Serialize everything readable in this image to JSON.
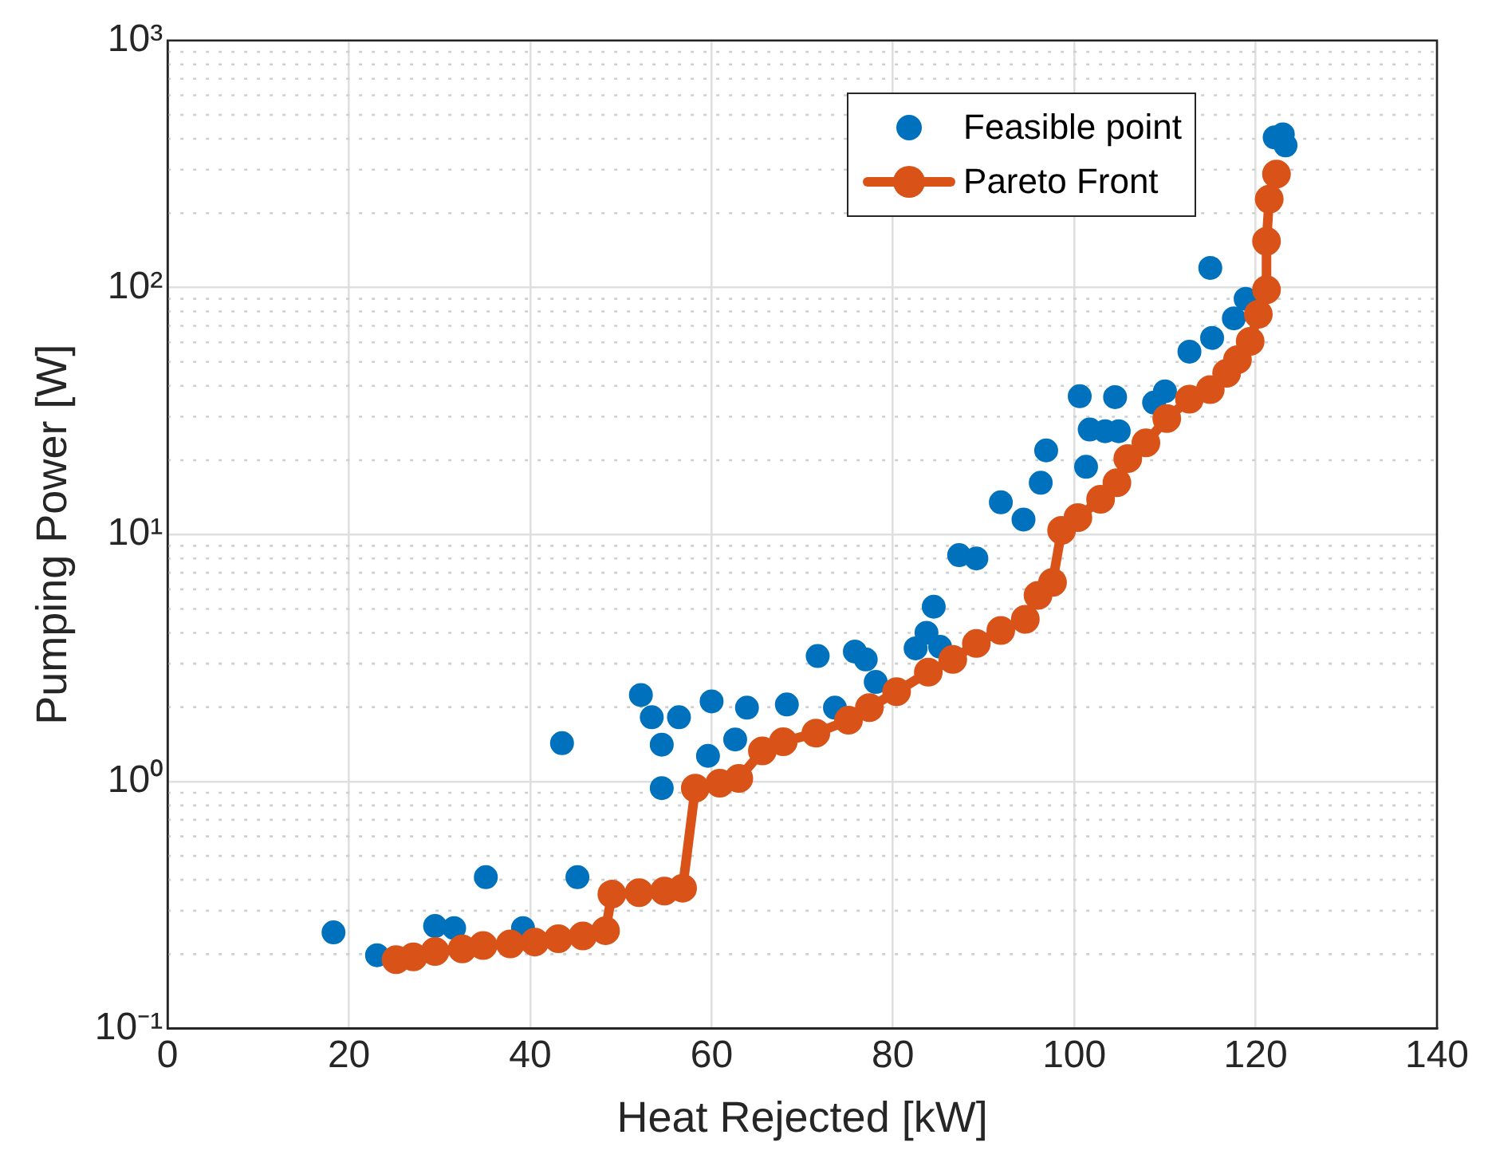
{
  "chart_data": {
    "type": "scatter",
    "xlabel": "Heat Rejected [kW]",
    "ylabel": "Pumping Power [W]",
    "xlim": [
      0,
      140
    ],
    "xticks": [
      0,
      20,
      40,
      60,
      80,
      100,
      120,
      140
    ],
    "ylim": [
      0.1,
      1000
    ],
    "yticks": [
      {
        "value": 0.1,
        "label": "10⁻¹"
      },
      {
        "value": 1,
        "label": "10⁰"
      },
      {
        "value": 10,
        "label": "10¹"
      },
      {
        "value": 100,
        "label": "10²"
      },
      {
        "value": 1000,
        "label": "10³"
      }
    ],
    "log": "y",
    "grid": true,
    "legend": "top right",
    "marker": "circle",
    "series": [
      {
        "name": "Feasible point",
        "color": "#0072bd",
        "x": [
          18.3,
          23.1,
          29.5,
          31.6,
          35.1,
          39.2,
          43.5,
          45.2,
          52.2,
          53.4,
          54.5,
          54.5,
          56.4,
          59.6,
          60,
          62.6,
          63.9,
          68.3,
          71.7,
          73.6,
          75.8,
          77,
          78.1,
          82.5,
          83.7,
          84.5,
          85.2,
          87.3,
          89.2,
          91.9,
          94.4,
          96.9,
          96.3,
          100.6,
          101.3,
          101.7,
          103.4,
          104.5,
          104.9,
          108.8,
          110,
          112.7,
          115,
          115.2,
          117.6,
          118.9,
          122.1,
          123,
          123.3
        ],
        "values": [
          0.245,
          0.198,
          0.26,
          0.255,
          0.41,
          0.255,
          1.43,
          0.41,
          2.24,
          1.82,
          1.41,
          0.94,
          1.82,
          1.27,
          2.11,
          1.48,
          1.99,
          2.05,
          3.22,
          1.99,
          3.36,
          3.12,
          2.53,
          3.46,
          4.0,
          5.1,
          3.51,
          8.25,
          8.0,
          13.5,
          11.5,
          21.9,
          16.2,
          36.3,
          18.8,
          26.6,
          26.2,
          36,
          26.2,
          34.2,
          38,
          55,
          120,
          62.5,
          75,
          90,
          405,
          417,
          376
        ]
      },
      {
        "name": "Pareto Front",
        "type": "line",
        "color": "#d95319",
        "x": [
          25.2,
          27.1,
          29.5,
          32.5,
          34.8,
          37.8,
          40.5,
          43.1,
          45.8,
          48.3,
          49,
          52,
          54.8,
          56.8,
          58.2,
          60.9,
          63,
          65.6,
          67.9,
          71.5,
          75.1,
          77.4,
          80.4,
          83.9,
          86.6,
          89.2,
          91.9,
          94.6,
          96,
          97.6,
          98.6,
          100.4,
          102.9,
          104.7,
          105.9,
          107.9,
          110.2,
          112.7,
          115,
          116.8,
          118,
          119.4,
          120.3,
          121.2,
          121.2,
          121.5,
          122.3
        ],
        "values": [
          0.19,
          0.195,
          0.205,
          0.21,
          0.217,
          0.22,
          0.224,
          0.231,
          0.237,
          0.249,
          0.35,
          0.355,
          0.36,
          0.37,
          0.94,
          0.985,
          1.03,
          1.33,
          1.45,
          1.57,
          1.77,
          1.99,
          2.31,
          2.77,
          3.12,
          3.62,
          4.09,
          4.54,
          5.67,
          6.4,
          10.4,
          11.7,
          13.9,
          16.2,
          20.3,
          23.5,
          29.5,
          35.3,
          38.6,
          45,
          51,
          60.5,
          78,
          98,
          154,
          228,
          288
        ]
      }
    ]
  }
}
